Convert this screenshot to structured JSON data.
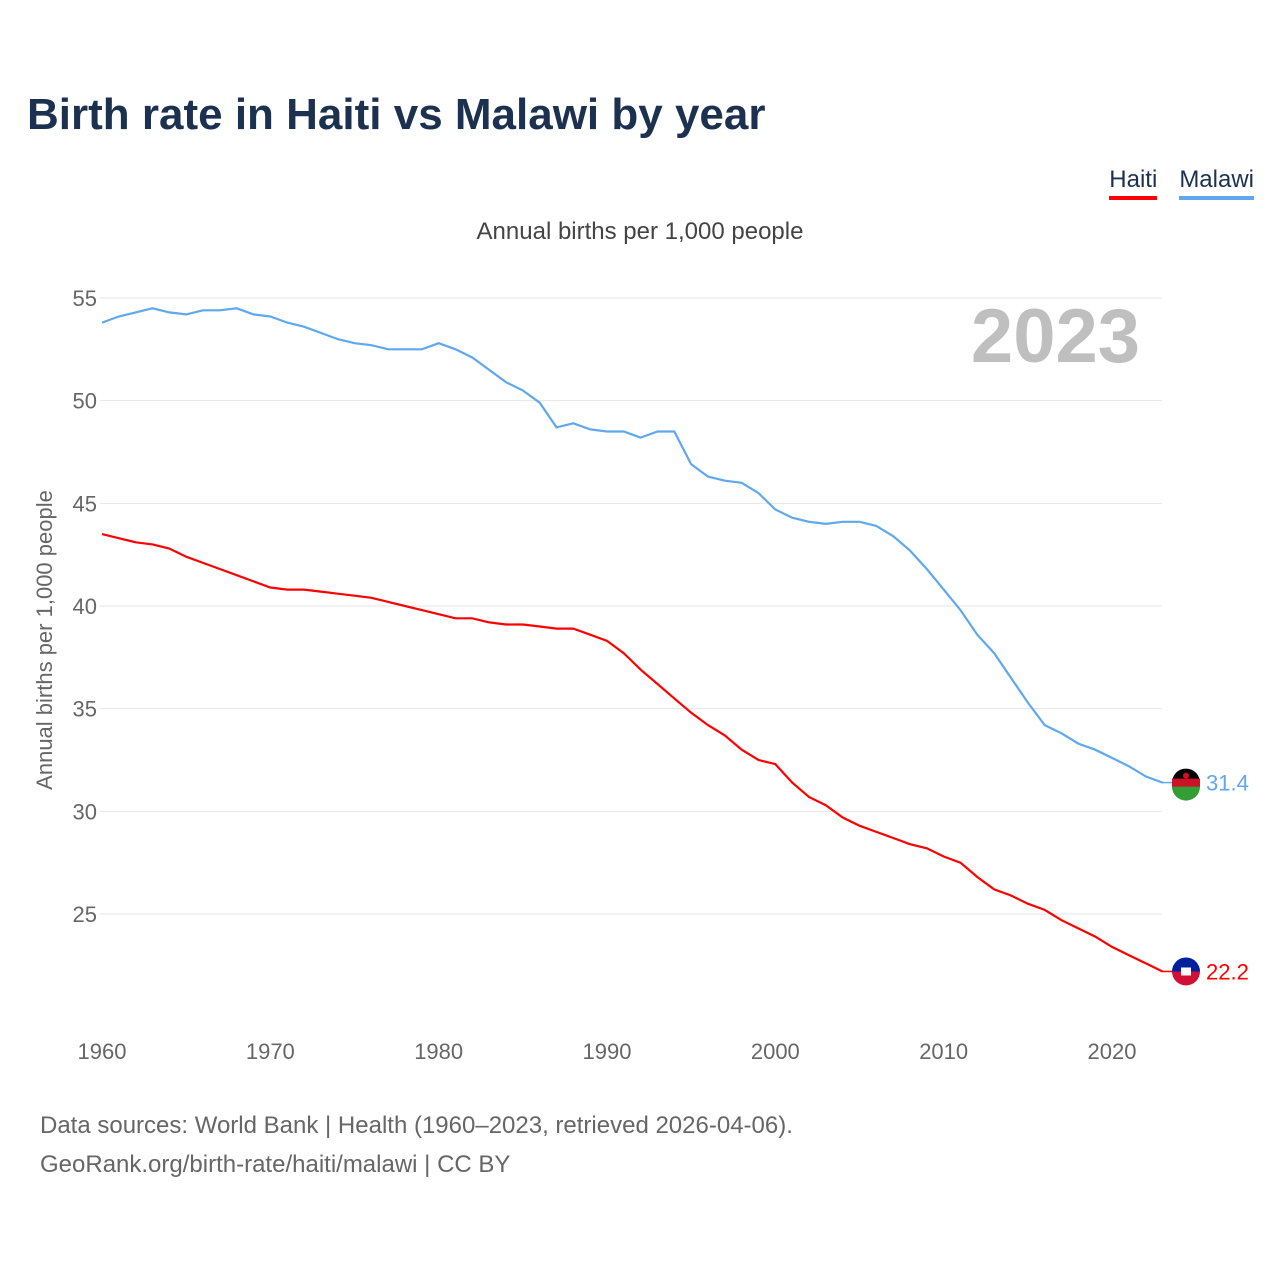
{
  "title": "Birth rate in Haiti vs Malawi by year",
  "legend": [
    {
      "label": "Haiti",
      "color": "#ff0000"
    },
    {
      "label": "Malawi",
      "color": "#5fa8ee"
    }
  ],
  "subtitle": "Annual births per 1,000 people",
  "footer": {
    "line1": "Data sources: World Bank | Health (1960–2023, retrieved 2026-04-06).",
    "line2": "GeoRank.org/birth-rate/haiti/malawi | CC BY"
  },
  "chart_data": {
    "type": "line",
    "title": "Birth rate in Haiti vs Malawi by year",
    "ylabel": "Annual births per 1,000 people",
    "xlabel": "",
    "year_label": "2023",
    "x_ticks": [
      1960,
      1970,
      1980,
      1990,
      2000,
      2010,
      2020
    ],
    "y_ticks": [
      25,
      30,
      35,
      40,
      45,
      50,
      55
    ],
    "xlim": [
      1960,
      2023
    ],
    "ylim": [
      20.5,
      55.5
    ],
    "grid": true,
    "legend_position": "top-right",
    "x_start": 1960,
    "series": [
      {
        "name": "Malawi",
        "color": "#5fa8ee",
        "end_label": "31.4",
        "values": [
          53.8,
          54.1,
          54.3,
          54.5,
          54.3,
          54.2,
          54.4,
          54.4,
          54.5,
          54.2,
          54.1,
          53.8,
          53.6,
          53.3,
          53.0,
          52.8,
          52.7,
          52.5,
          52.5,
          52.5,
          52.8,
          52.5,
          52.1,
          51.5,
          50.9,
          50.5,
          49.9,
          48.7,
          48.9,
          48.6,
          48.5,
          48.5,
          48.2,
          48.5,
          48.5,
          46.9,
          46.3,
          46.1,
          46.0,
          45.5,
          44.7,
          44.3,
          44.1,
          44.0,
          44.1,
          44.1,
          43.9,
          43.4,
          42.7,
          41.8,
          40.8,
          39.8,
          38.6,
          37.7,
          36.5,
          35.3,
          34.2,
          33.8,
          33.3,
          33.0,
          32.6,
          32.2,
          31.7,
          31.4
        ]
      },
      {
        "name": "Haiti",
        "color": "#ff0000",
        "end_label": "22.2",
        "values": [
          43.5,
          43.3,
          43.1,
          43.0,
          42.8,
          42.4,
          42.1,
          41.8,
          41.5,
          41.2,
          40.9,
          40.8,
          40.8,
          40.7,
          40.6,
          40.5,
          40.4,
          40.2,
          40.0,
          39.8,
          39.6,
          39.4,
          39.4,
          39.2,
          39.1,
          39.1,
          39.0,
          38.9,
          38.9,
          38.6,
          38.3,
          37.7,
          36.9,
          36.2,
          35.5,
          34.8,
          34.2,
          33.7,
          33.0,
          32.5,
          32.3,
          31.4,
          30.7,
          30.3,
          29.7,
          29.3,
          29.0,
          28.7,
          28.4,
          28.2,
          27.8,
          27.5,
          26.8,
          26.2,
          25.9,
          25.5,
          25.2,
          24.7,
          24.3,
          23.9,
          23.4,
          23.0,
          22.6,
          22.2
        ]
      }
    ]
  }
}
